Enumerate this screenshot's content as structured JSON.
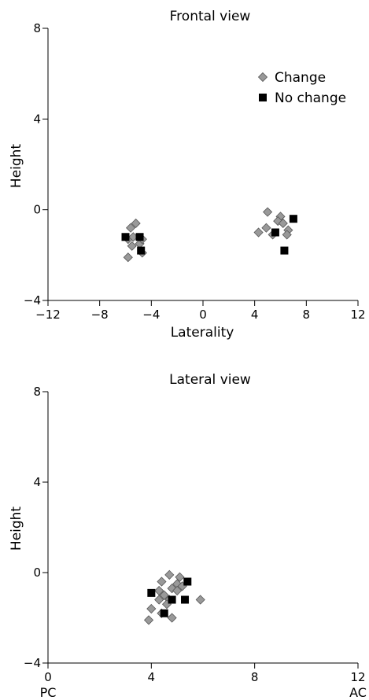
{
  "chart_data": [
    {
      "type": "scatter",
      "title": "Frontal view",
      "xlabel": "Laterality",
      "ylabel": "Height",
      "xlim": [
        -12,
        12
      ],
      "ylim": [
        -4,
        8
      ],
      "xticks": [
        "−12",
        "−8",
        "−4",
        "0",
        "4",
        "8",
        "12"
      ],
      "yticks": [
        "−4",
        "0",
        "4",
        "8"
      ],
      "legend_position": "top-right",
      "colors": {
        "Change": "#999999",
        "No change": "#000000"
      },
      "series": [
        {
          "name": "Change",
          "marker": "diamond",
          "points": [
            [
              -5.6,
              -0.8
            ],
            [
              -5.2,
              -0.6
            ],
            [
              -5.8,
              -1.3
            ],
            [
              -5.5,
              -1.6
            ],
            [
              -4.9,
              -1.5
            ],
            [
              -5.8,
              -2.1
            ],
            [
              -4.7,
              -1.9
            ],
            [
              -4.7,
              -1.3
            ],
            [
              -5.4,
              -1.2
            ],
            [
              5.0,
              -0.1
            ],
            [
              6.0,
              -0.3
            ],
            [
              5.8,
              -0.5
            ],
            [
              4.3,
              -1.0
            ],
            [
              4.9,
              -0.8
            ],
            [
              5.4,
              -1.1
            ],
            [
              6.6,
              -0.9
            ],
            [
              6.5,
              -1.1
            ],
            [
              6.2,
              -0.6
            ]
          ]
        },
        {
          "name": "No change",
          "marker": "square",
          "points": [
            [
              -6.0,
              -1.2
            ],
            [
              -4.9,
              -1.2
            ],
            [
              -4.8,
              -1.8
            ],
            [
              5.6,
              -1.0
            ],
            [
              7.0,
              -0.4
            ],
            [
              6.3,
              -1.8
            ]
          ]
        }
      ]
    },
    {
      "type": "scatter",
      "title": "Lateral view",
      "xlabel": "",
      "ylabel": "Height",
      "xlim": [
        0,
        12
      ],
      "ylim": [
        -4,
        8
      ],
      "xticks": [
        "0",
        "4",
        "8",
        "12"
      ],
      "yticks": [
        "−4",
        "0",
        "4",
        "8"
      ],
      "xend_labels": {
        "left": "PC",
        "right": "AC"
      },
      "colors": {
        "Change": "#999999",
        "No change": "#000000"
      },
      "series": [
        {
          "name": "Change",
          "marker": "diamond",
          "points": [
            [
              4.4,
              -0.4
            ],
            [
              4.7,
              -0.1
            ],
            [
              5.1,
              -0.2
            ],
            [
              4.3,
              -0.8
            ],
            [
              4.8,
              -0.7
            ],
            [
              5.0,
              -0.5
            ],
            [
              4.5,
              -1.0
            ],
            [
              4.7,
              -1.2
            ],
            [
              4.3,
              -1.2
            ],
            [
              5.2,
              -0.6
            ],
            [
              4.0,
              -1.6
            ],
            [
              4.4,
              -1.8
            ],
            [
              3.9,
              -2.1
            ],
            [
              4.8,
              -2.0
            ],
            [
              5.9,
              -1.2
            ],
            [
              5.0,
              -0.8
            ],
            [
              4.6,
              -1.4
            ]
          ]
        },
        {
          "name": "No change",
          "marker": "square",
          "points": [
            [
              4.0,
              -0.9
            ],
            [
              5.4,
              -0.4
            ],
            [
              4.8,
              -1.2
            ],
            [
              5.3,
              -1.2
            ],
            [
              4.5,
              -1.8
            ]
          ]
        }
      ]
    }
  ]
}
